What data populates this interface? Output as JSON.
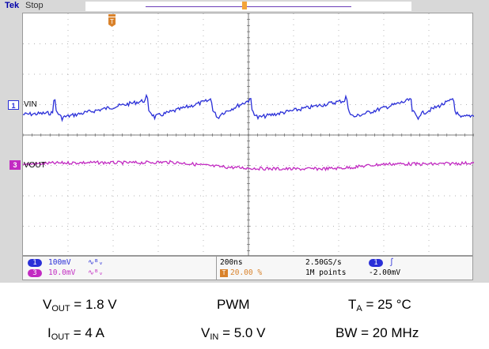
{
  "scope": {
    "brand": "Tek",
    "status": "Stop",
    "channels": [
      {
        "marker": "1",
        "name": "VIN",
        "scale": "100mV",
        "bw_icon": "bandwidth-limit-icon",
        "color": "#2a2fd8"
      },
      {
        "marker": "3",
        "name": "VOUT",
        "scale": "10.0mV",
        "bw_icon": "bandwidth-limit-icon",
        "color": "#c22bc2"
      }
    ],
    "timebase": "200ns",
    "trigger_position": "20.00 %",
    "sample_rate": "2.50GS/s",
    "record_length": "1M points",
    "trigger_source": "1",
    "trigger_slope_icon": "rising-edge-icon",
    "trigger_level": "-2.00mV",
    "trigger_marker": "T",
    "colors": {
      "ch1": "#2a2fd8",
      "ch3": "#c22bc2",
      "trigger": "#d9822b",
      "grid": "#9a9a9a"
    }
  },
  "caption": {
    "vout_label": "V",
    "vout_sub": "OUT",
    "vout_value": " = 1.8 V",
    "mode": "PWM",
    "ta_label": "T",
    "ta_sub": "A",
    "ta_value": " = 25 °C",
    "iout_label": "I",
    "iout_sub": "OUT",
    "iout_value": " = 4 A",
    "vin_label": "V",
    "vin_sub": "IN",
    "vin_value": " = 5.0 V",
    "bw": "BW = 20 MHz"
  }
}
